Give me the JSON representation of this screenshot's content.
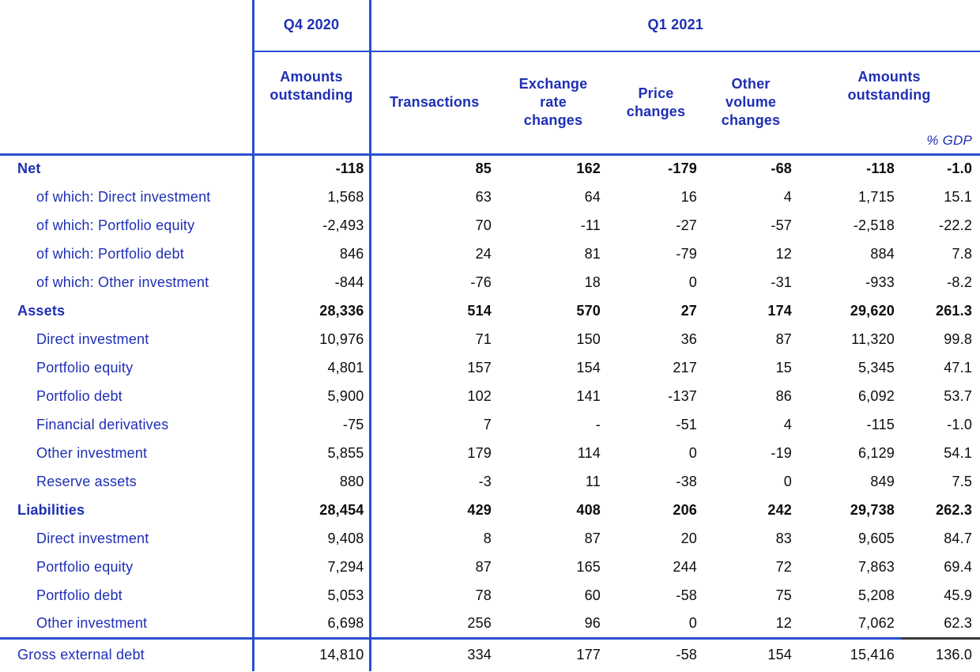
{
  "colors": {
    "text_blue": "#1e2fb4",
    "line_blue": "#2a4fd2",
    "number_black": "#0d0d0d",
    "separator_dark": "#3a3a3a"
  },
  "table": {
    "header": {
      "col_q4": "Q4 2020",
      "col_q1": "Q1 2021",
      "sub": {
        "amounts_q4": "Amounts outstanding",
        "transactions": "Transactions",
        "exchange": "Exchange rate changes",
        "price": "Price changes",
        "other_volume": "Other volume changes",
        "amounts_q1": "Amounts outstanding",
        "gdp": "% GDP"
      }
    },
    "columns": [
      "label",
      "q4_amounts_outstanding",
      "transactions",
      "exchange_rate_changes",
      "price_changes",
      "other_volume_changes",
      "q1_amounts_outstanding",
      "pct_gdp"
    ],
    "rows": [
      {
        "label": "Net",
        "indent": 0,
        "bold": true,
        "separator": false,
        "values": [
          "-118",
          "85",
          "162",
          "-179",
          "-68",
          "-118",
          "-1.0"
        ]
      },
      {
        "label": "of which: Direct investment",
        "indent": 1,
        "bold": false,
        "separator": false,
        "values": [
          "1,568",
          "63",
          "64",
          "16",
          "4",
          "1,715",
          "15.1"
        ]
      },
      {
        "label": "of which: Portfolio equity",
        "indent": 1,
        "bold": false,
        "separator": false,
        "values": [
          "-2,493",
          "70",
          "-11",
          "-27",
          "-57",
          "-2,518",
          "-22.2"
        ]
      },
      {
        "label": "of which: Portfolio debt",
        "indent": 1,
        "bold": false,
        "separator": false,
        "values": [
          "846",
          "24",
          "81",
          "-79",
          "12",
          "884",
          "7.8"
        ]
      },
      {
        "label": "of which: Other investment",
        "indent": 1,
        "bold": false,
        "separator": false,
        "values": [
          "-844",
          "-76",
          "18",
          "0",
          "-31",
          "-933",
          "-8.2"
        ]
      },
      {
        "label": "Assets",
        "indent": 0,
        "bold": true,
        "separator": false,
        "values": [
          "28,336",
          "514",
          "570",
          "27",
          "174",
          "29,620",
          "261.3"
        ]
      },
      {
        "label": "Direct investment",
        "indent": 1,
        "bold": false,
        "separator": false,
        "values": [
          "10,976",
          "71",
          "150",
          "36",
          "87",
          "11,320",
          "99.8"
        ]
      },
      {
        "label": "Portfolio equity",
        "indent": 1,
        "bold": false,
        "separator": false,
        "values": [
          "4,801",
          "157",
          "154",
          "217",
          "15",
          "5,345",
          "47.1"
        ]
      },
      {
        "label": "Portfolio debt",
        "indent": 1,
        "bold": false,
        "separator": false,
        "values": [
          "5,900",
          "102",
          "141",
          "-137",
          "86",
          "6,092",
          "53.7"
        ]
      },
      {
        "label": "Financial derivatives",
        "indent": 1,
        "bold": false,
        "separator": false,
        "values": [
          "-75",
          "7",
          "-",
          "-51",
          "4",
          "-115",
          "-1.0"
        ]
      },
      {
        "label": "Other investment",
        "indent": 1,
        "bold": false,
        "separator": false,
        "values": [
          "5,855",
          "179",
          "114",
          "0",
          "-19",
          "6,129",
          "54.1"
        ]
      },
      {
        "label": "Reserve assets",
        "indent": 1,
        "bold": false,
        "separator": false,
        "values": [
          "880",
          "-3",
          "11",
          "-38",
          "0",
          "849",
          "7.5"
        ]
      },
      {
        "label": "Liabilities",
        "indent": 0,
        "bold": true,
        "separator": false,
        "values": [
          "28,454",
          "429",
          "408",
          "206",
          "242",
          "29,738",
          "262.3"
        ]
      },
      {
        "label": "Direct investment",
        "indent": 1,
        "bold": false,
        "separator": false,
        "values": [
          "9,408",
          "8",
          "87",
          "20",
          "83",
          "9,605",
          "84.7"
        ]
      },
      {
        "label": "Portfolio equity",
        "indent": 1,
        "bold": false,
        "separator": false,
        "values": [
          "7,294",
          "87",
          "165",
          "244",
          "72",
          "7,863",
          "69.4"
        ]
      },
      {
        "label": "Portfolio debt",
        "indent": 1,
        "bold": false,
        "separator": false,
        "values": [
          "5,053",
          "78",
          "60",
          "-58",
          "75",
          "5,208",
          "45.9"
        ]
      },
      {
        "label": "Other investment",
        "indent": 1,
        "bold": false,
        "separator": false,
        "values": [
          "6,698",
          "256",
          "96",
          "0",
          "12",
          "7,062",
          "62.3"
        ]
      },
      {
        "label": "Gross external debt",
        "indent": 0,
        "bold": false,
        "separator": true,
        "values": [
          "14,810",
          "334",
          "177",
          "-58",
          "154",
          "15,416",
          "136.0"
        ]
      }
    ]
  }
}
